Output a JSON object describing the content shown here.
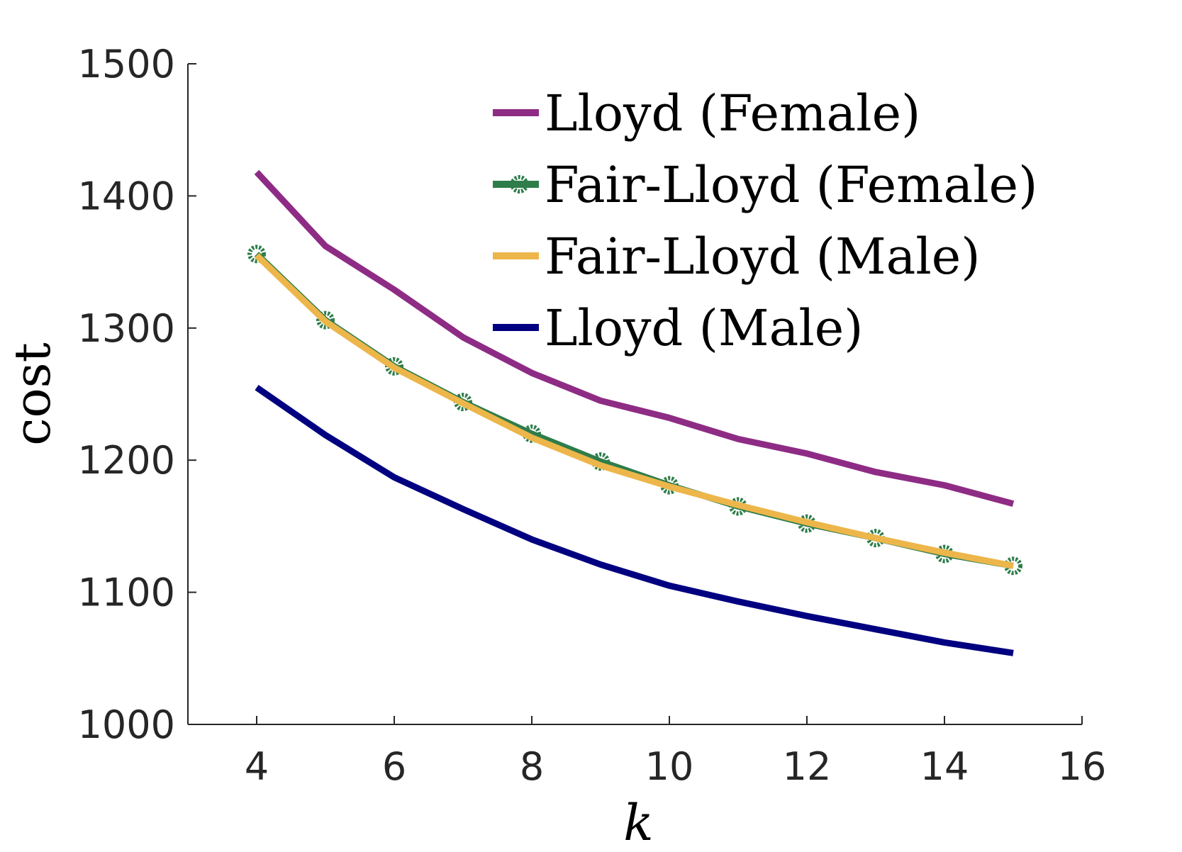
{
  "chart_data": {
    "type": "line",
    "title": "",
    "xlabel": "k",
    "ylabel": "cost",
    "xlim": [
      3,
      16
    ],
    "ylim": [
      1000,
      1500
    ],
    "xticks": [
      4,
      6,
      8,
      10,
      12,
      14,
      16
    ],
    "yticks": [
      1000,
      1100,
      1200,
      1300,
      1400,
      1500
    ],
    "grid": false,
    "legend_position": "top-right",
    "x": [
      4,
      5,
      6,
      7,
      8,
      9,
      10,
      11,
      12,
      13,
      14,
      15
    ],
    "series": [
      {
        "name": "Lloyd (Female)",
        "color": "#8E2C85",
        "marker": "none",
        "values": [
          1418,
          1362,
          1329,
          1293,
          1266,
          1245,
          1232,
          1216,
          1205,
          1191,
          1181,
          1167
        ]
      },
      {
        "name": "Fair-Lloyd (Female)",
        "color": "#2E7D4B",
        "marker": "circle",
        "values": [
          1356,
          1306,
          1271,
          1244,
          1220,
          1199,
          1181,
          1165,
          1152,
          1141,
          1129,
          1120
        ]
      },
      {
        "name": "Fair-Lloyd (Male)",
        "color": "#EDB64A",
        "marker": "none",
        "values": [
          1355,
          1305,
          1270,
          1243,
          1217,
          1196,
          1180,
          1166,
          1153,
          1141,
          1130,
          1120
        ]
      },
      {
        "name": "Lloyd (Male)",
        "color": "#000080",
        "marker": "none",
        "values": [
          1255,
          1219,
          1187,
          1163,
          1140,
          1121,
          1105,
          1093,
          1082,
          1072,
          1062,
          1054
        ]
      }
    ]
  }
}
